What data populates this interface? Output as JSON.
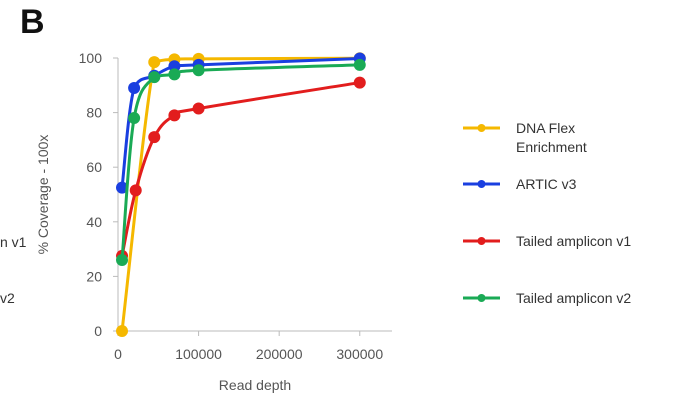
{
  "panel_label": "B",
  "left_clipped": [
    "n v1",
    "v2"
  ],
  "chart_data": {
    "type": "line",
    "title": "",
    "xlabel": "Read depth",
    "ylabel": "% Coverage - 100x",
    "xlim": [
      0,
      340000
    ],
    "ylim": [
      0,
      100
    ],
    "xticks": [
      0,
      100000,
      200000,
      300000
    ],
    "xtick_labels": [
      "0",
      "100000",
      "200000",
      "300000"
    ],
    "yticks": [
      0,
      20,
      40,
      60,
      80,
      100
    ],
    "ytick_labels": [
      "0",
      "20",
      "40",
      "60",
      "80",
      "100"
    ],
    "grid": false,
    "legend_position": "right",
    "series": [
      {
        "name": "DNA Flex Enrichment",
        "color": "#f5b800",
        "x": [
          5000,
          45000,
          70000,
          100000,
          300000
        ],
        "y": [
          0,
          98.5,
          99.5,
          99.7,
          99.9
        ]
      },
      {
        "name": "ARTIC v3",
        "color": "#1a3fe0",
        "x": [
          5000,
          20000,
          45000,
          70000,
          100000,
          300000
        ],
        "y": [
          52.5,
          89,
          93.5,
          97,
          97.5,
          99.8
        ]
      },
      {
        "name": "Tailed amplicon v1",
        "color": "#e21d1d",
        "x": [
          5000,
          22000,
          45000,
          70000,
          100000,
          300000
        ],
        "y": [
          27.5,
          51.5,
          71,
          79,
          81.5,
          91
        ]
      },
      {
        "name": "Tailed amplicon v2",
        "color": "#1aaa55",
        "x": [
          5000,
          20000,
          45000,
          70000,
          100000,
          300000
        ],
        "y": [
          26,
          78,
          93,
          94,
          95.5,
          97.5
        ]
      }
    ]
  }
}
